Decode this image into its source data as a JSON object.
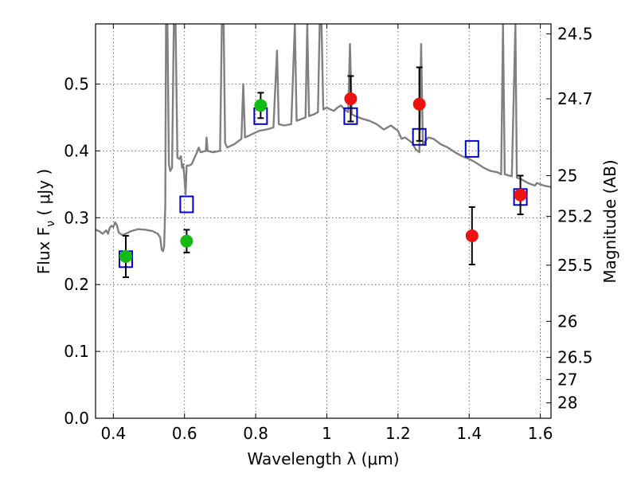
{
  "chart_data": {
    "type": "scatter",
    "xlabel": "Wavelength  λ (μm)",
    "ylabel": "Flux  F",
    "ylabel_sub": "ν",
    "ylabel_unit": " ( μJy )",
    "ylabel_right": "Magnitude (AB)",
    "xlim": [
      0.35,
      1.63
    ],
    "ylim": [
      0.0,
      0.59
    ],
    "grid": true,
    "x_ticks": [
      {
        "value": 0.4,
        "label": "0.4"
      },
      {
        "value": 0.6,
        "label": "0.6"
      },
      {
        "value": 0.8,
        "label": "0.8"
      },
      {
        "value": 1.0,
        "label": "1"
      },
      {
        "value": 1.2,
        "label": "1.2"
      },
      {
        "value": 1.4,
        "label": "1.4"
      },
      {
        "value": 1.6,
        "label": "1.6"
      }
    ],
    "y_ticks": [
      {
        "value": 0.0,
        "label": "0.0"
      },
      {
        "value": 0.1,
        "label": "0.1"
      },
      {
        "value": 0.2,
        "label": "0.2"
      },
      {
        "value": 0.3,
        "label": "0.3"
      },
      {
        "value": 0.4,
        "label": "0.4"
      },
      {
        "value": 0.5,
        "label": "0.5"
      }
    ],
    "right_ticks": [
      {
        "label": "24.5",
        "flux": 0.575
      },
      {
        "label": "24.7",
        "flux": 0.478
      },
      {
        "label": "25",
        "flux": 0.363
      },
      {
        "label": "25.2",
        "flux": 0.302
      },
      {
        "label": "25.5",
        "flux": 0.229
      },
      {
        "label": "26",
        "flux": 0.145
      },
      {
        "label": "26.5",
        "flux": 0.091
      },
      {
        "label": "27",
        "flux": 0.058
      },
      {
        "label": "28",
        "flux": 0.023
      }
    ],
    "colors": {
      "spectrum": "#808080",
      "green": "#11bb11",
      "red": "#ee1111",
      "model": "#0000cc",
      "errorbar": "#000000"
    },
    "series": [
      {
        "kind": "observed_green",
        "points": [
          {
            "x": 0.435,
            "y": 0.242,
            "yerr": 0.031
          },
          {
            "x": 0.606,
            "y": 0.265,
            "yerr": 0.017
          },
          {
            "x": 0.814,
            "y": 0.468,
            "yerr": 0.019
          }
        ]
      },
      {
        "kind": "observed_red",
        "points": [
          {
            "x": 1.067,
            "y": 0.478,
            "yerr": 0.034
          },
          {
            "x": 1.26,
            "y": 0.47,
            "yerr": 0.055
          },
          {
            "x": 1.408,
            "y": 0.273,
            "yerr": 0.043
          },
          {
            "x": 1.544,
            "y": 0.334,
            "yerr": 0.029
          }
        ]
      },
      {
        "kind": "model_squares",
        "points": [
          {
            "x": 0.435,
            "y": 0.238
          },
          {
            "x": 0.606,
            "y": 0.32
          },
          {
            "x": 0.814,
            "y": 0.452
          },
          {
            "x": 1.067,
            "y": 0.452
          },
          {
            "x": 1.26,
            "y": 0.421
          },
          {
            "x": 1.408,
            "y": 0.403
          },
          {
            "x": 1.544,
            "y": 0.331
          }
        ]
      }
    ],
    "spectrum": [
      [
        0.35,
        0.282
      ],
      [
        0.36,
        0.28
      ],
      [
        0.37,
        0.276
      ],
      [
        0.38,
        0.281
      ],
      [
        0.385,
        0.276
      ],
      [
        0.39,
        0.285
      ],
      [
        0.395,
        0.288
      ],
      [
        0.4,
        0.286
      ],
      [
        0.405,
        0.293
      ],
      [
        0.41,
        0.289
      ],
      [
        0.415,
        0.278
      ],
      [
        0.425,
        0.274
      ],
      [
        0.435,
        0.276
      ],
      [
        0.45,
        0.28
      ],
      [
        0.47,
        0.283
      ],
      [
        0.49,
        0.282
      ],
      [
        0.51,
        0.28
      ],
      [
        0.525,
        0.276
      ],
      [
        0.532,
        0.27
      ],
      [
        0.536,
        0.252
      ],
      [
        0.54,
        0.25
      ],
      [
        0.543,
        0.258
      ],
      [
        0.546,
        0.32
      ],
      [
        0.548,
        0.59
      ],
      [
        0.552,
        0.59
      ],
      [
        0.556,
        0.38
      ],
      [
        0.56,
        0.37
      ],
      [
        0.565,
        0.375
      ],
      [
        0.57,
        0.59
      ],
      [
        0.575,
        0.59
      ],
      [
        0.58,
        0.39
      ],
      [
        0.585,
        0.388
      ],
      [
        0.59,
        0.392
      ],
      [
        0.593,
        0.375
      ],
      [
        0.596,
        0.38
      ],
      [
        0.599,
        0.365
      ],
      [
        0.603,
        0.335
      ],
      [
        0.606,
        0.378
      ],
      [
        0.612,
        0.378
      ],
      [
        0.62,
        0.38
      ],
      [
        0.635,
        0.398
      ],
      [
        0.64,
        0.405
      ],
      [
        0.645,
        0.398
      ],
      [
        0.66,
        0.4
      ],
      [
        0.662,
        0.42
      ],
      [
        0.665,
        0.4
      ],
      [
        0.68,
        0.398
      ],
      [
        0.7,
        0.4
      ],
      [
        0.705,
        0.59
      ],
      [
        0.71,
        0.59
      ],
      [
        0.714,
        0.412
      ],
      [
        0.72,
        0.405
      ],
      [
        0.74,
        0.41
      ],
      [
        0.76,
        0.418
      ],
      [
        0.765,
        0.5
      ],
      [
        0.77,
        0.42
      ],
      [
        0.79,
        0.425
      ],
      [
        0.81,
        0.43
      ],
      [
        0.83,
        0.432
      ],
      [
        0.85,
        0.435
      ],
      [
        0.86,
        0.55
      ],
      [
        0.865,
        0.44
      ],
      [
        0.88,
        0.438
      ],
      [
        0.9,
        0.44
      ],
      [
        0.91,
        0.59
      ],
      [
        0.915,
        0.445
      ],
      [
        0.93,
        0.448
      ],
      [
        0.94,
        0.45
      ],
      [
        0.945,
        0.59
      ],
      [
        0.95,
        0.452
      ],
      [
        0.965,
        0.455
      ],
      [
        0.975,
        0.458
      ],
      [
        0.98,
        0.59
      ],
      [
        0.985,
        0.59
      ],
      [
        0.99,
        0.462
      ],
      [
        1.0,
        0.465
      ],
      [
        1.01,
        0.462
      ],
      [
        1.02,
        0.46
      ],
      [
        1.03,
        0.465
      ],
      [
        1.04,
        0.468
      ],
      [
        1.05,
        0.462
      ],
      [
        1.06,
        0.458
      ],
      [
        1.065,
        0.56
      ],
      [
        1.07,
        0.455
      ],
      [
        1.08,
        0.452
      ],
      [
        1.1,
        0.448
      ],
      [
        1.12,
        0.445
      ],
      [
        1.14,
        0.44
      ],
      [
        1.16,
        0.432
      ],
      [
        1.18,
        0.438
      ],
      [
        1.2,
        0.43
      ],
      [
        1.21,
        0.418
      ],
      [
        1.22,
        0.42
      ],
      [
        1.24,
        0.412
      ],
      [
        1.25,
        0.402
      ],
      [
        1.26,
        0.398
      ],
      [
        1.265,
        0.56
      ],
      [
        1.27,
        0.41
      ],
      [
        1.285,
        0.42
      ],
      [
        1.3,
        0.418
      ],
      [
        1.32,
        0.41
      ],
      [
        1.34,
        0.405
      ],
      [
        1.36,
        0.398
      ],
      [
        1.38,
        0.392
      ],
      [
        1.4,
        0.388
      ],
      [
        1.42,
        0.382
      ],
      [
        1.44,
        0.375
      ],
      [
        1.46,
        0.37
      ],
      [
        1.48,
        0.368
      ],
      [
        1.49,
        0.365
      ],
      [
        1.495,
        0.59
      ],
      [
        1.5,
        0.365
      ],
      [
        1.52,
        0.362
      ],
      [
        1.53,
        0.59
      ],
      [
        1.534,
        0.36
      ],
      [
        1.545,
        0.358
      ],
      [
        1.555,
        0.355
      ],
      [
        1.565,
        0.352
      ],
      [
        1.575,
        0.35
      ],
      [
        1.585,
        0.348
      ],
      [
        1.59,
        0.352
      ],
      [
        1.6,
        0.35
      ],
      [
        1.61,
        0.348
      ],
      [
        1.62,
        0.347
      ],
      [
        1.63,
        0.346
      ]
    ]
  }
}
